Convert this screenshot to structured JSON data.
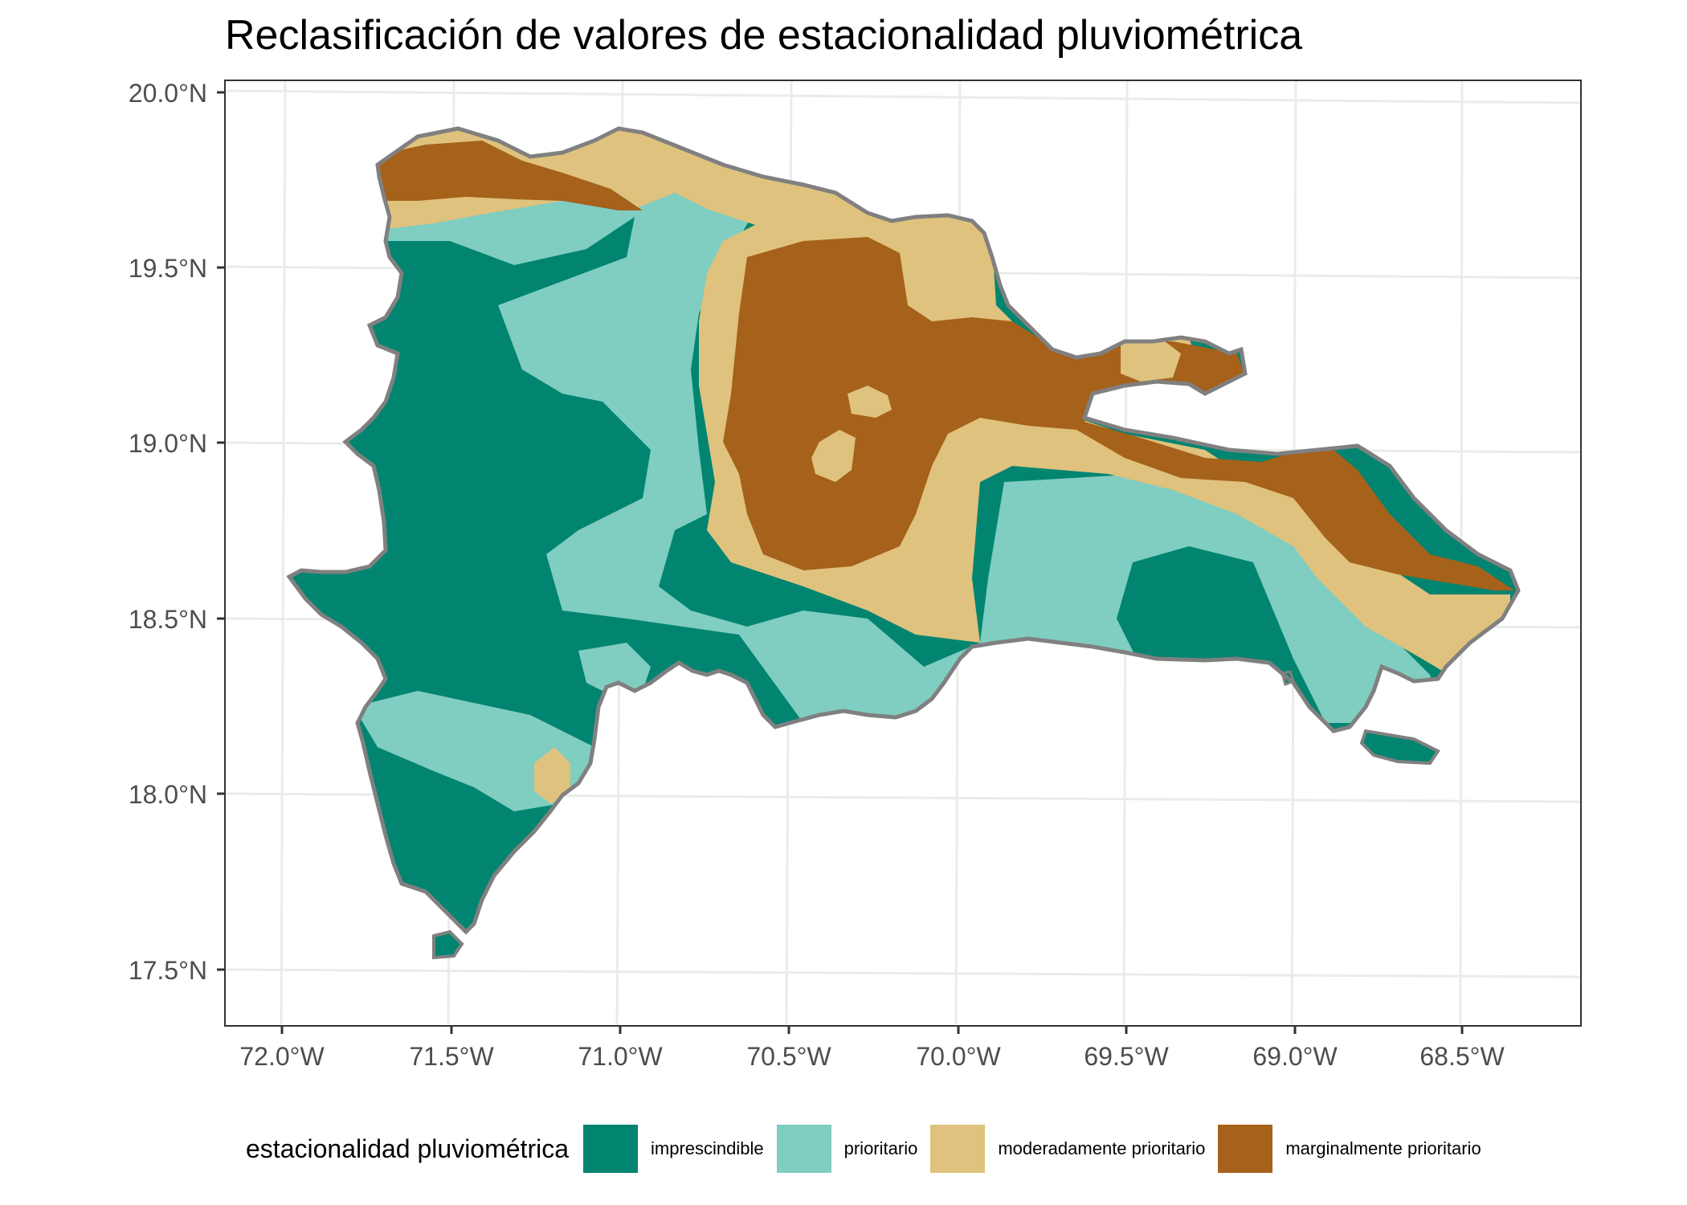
{
  "title": "Reclasificación de valores de estacionalidad pluviométrica",
  "axes": {
    "y_ticks": [
      "20.0°N",
      "19.5°N",
      "19.0°N",
      "18.5°N",
      "18.0°N",
      "17.5°N"
    ],
    "x_ticks": [
      "72.0°W",
      "71.5°W",
      "71.0°W",
      "70.5°W",
      "70.0°W",
      "69.5°W",
      "69.0°W",
      "68.5°W"
    ]
  },
  "legend": {
    "title": "estacionalidad pluviométrica",
    "items": [
      {
        "label": "imprescindible",
        "color": "#018571"
      },
      {
        "label": "prioritario",
        "color": "#80CDC1"
      },
      {
        "label": "moderadamente prioritario",
        "color": "#DFC27D"
      },
      {
        "label": "marginalmente prioritario",
        "color": "#A6611A"
      }
    ]
  },
  "colors": {
    "outline": "#808080",
    "grid": "#ebebeb",
    "panel_border": "#333333",
    "background": "#ffffff"
  }
}
